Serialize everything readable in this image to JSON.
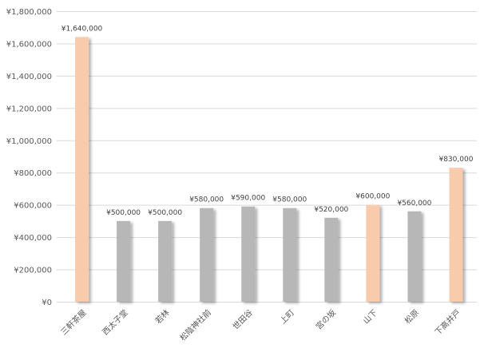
{
  "chart_data": {
    "type": "bar",
    "title": "",
    "xlabel": "",
    "ylabel": "",
    "ylim": [
      0,
      1800000
    ],
    "yticks": [
      0,
      200000,
      400000,
      600000,
      800000,
      1000000,
      1200000,
      1400000,
      1600000,
      1800000
    ],
    "ytick_labels": [
      "¥0",
      "¥200,000",
      "¥400,000",
      "¥600,000",
      "¥800,000",
      "¥1,000,000",
      "¥1,200,000",
      "¥1,400,000",
      "¥1,600,000",
      "¥1,800,000"
    ],
    "grid": true,
    "categories": [
      "三軒茶屋",
      "西太子堂",
      "若林",
      "松陰神社前",
      "世田谷",
      "上町",
      "宮の坂",
      "山下",
      "松原",
      "下高井戸"
    ],
    "values": [
      1640000,
      500000,
      500000,
      580000,
      590000,
      580000,
      520000,
      600000,
      560000,
      830000
    ],
    "data_labels": [
      "¥1,640,000",
      "¥500,000",
      "¥500,000",
      "¥580,000",
      "¥590,000",
      "¥580,000",
      "¥520,000",
      "¥600,000",
      "¥560,000",
      "¥830,000"
    ],
    "highlighted": [
      true,
      false,
      false,
      false,
      false,
      false,
      false,
      true,
      false,
      true
    ],
    "colors": {
      "highlight": "#F8CBAD",
      "normal": "#B7B7B7",
      "grid": "#D9D9D9",
      "text": "#595959"
    }
  }
}
